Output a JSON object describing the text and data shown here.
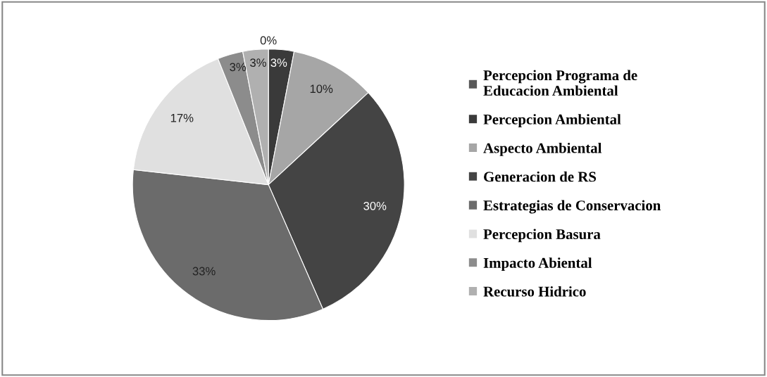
{
  "chart_data": {
    "type": "pie",
    "categories": [
      "Percepcion Programa de\nEducacion Ambiental",
      "Percepcion Ambiental",
      "Aspecto Ambiental",
      "Generacion de RS",
      "Estrategias de Conservacion",
      "Percepcion Basura",
      "Impacto Abiental",
      "Recurso Hidrico"
    ],
    "values": [
      0,
      3,
      10,
      30,
      33,
      17,
      3,
      3
    ],
    "colors": [
      "#595959",
      "#3a3a3a",
      "#a6a6a6",
      "#444444",
      "#6b6b6b",
      "#e0e0e0",
      "#8c8c8c",
      "#b0b0b0"
    ],
    "value_labels": [
      "0%",
      "3%",
      "10%",
      "30%",
      "33%",
      "17%",
      "3%",
      "3%"
    ],
    "legend": "right"
  }
}
